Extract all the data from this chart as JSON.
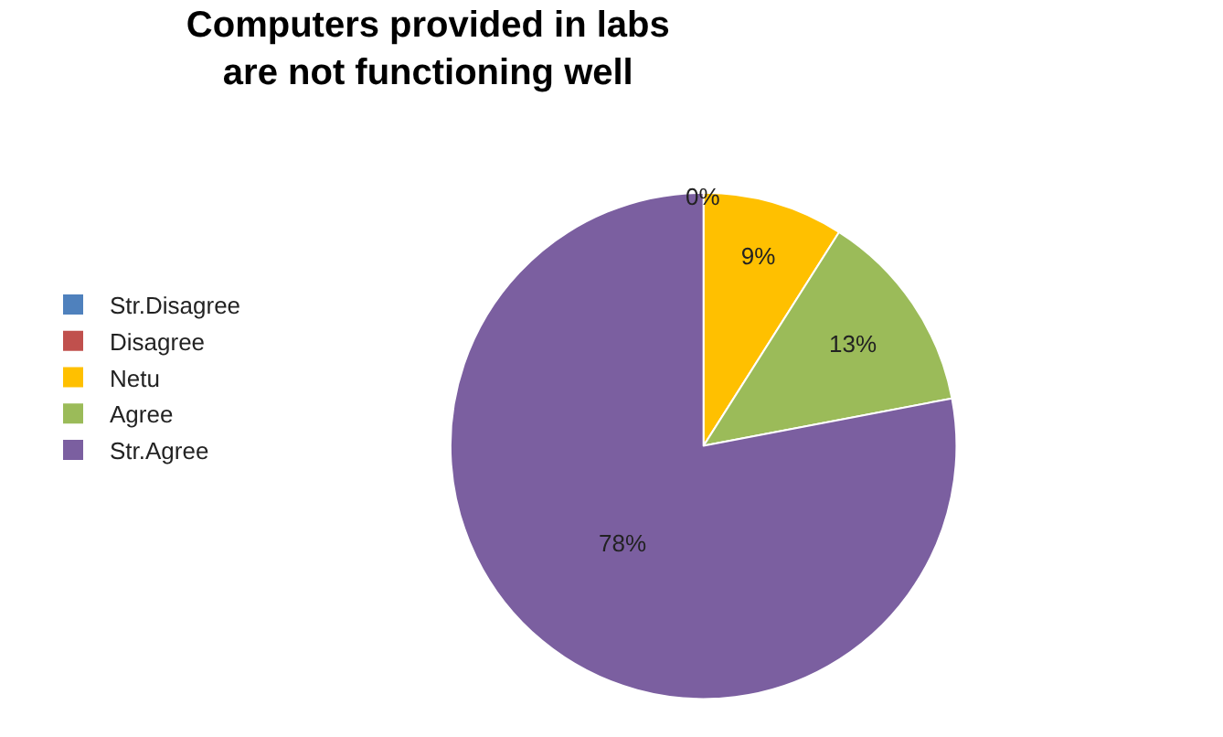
{
  "chart_data": {
    "type": "pie",
    "title": "Computers provided in labs\nare not functioning well",
    "categories": [
      "Str.Disagree",
      "Disagree",
      "Netu",
      "Agree",
      "Str.Agree"
    ],
    "values": [
      0,
      0,
      9,
      13,
      78
    ],
    "colors": [
      "#4f81bd",
      "#c0504d",
      "#ffc000",
      "#9bbb59",
      "#7b5fa0"
    ],
    "value_labels": [
      null,
      "0%",
      "9%",
      "13%",
      "78%"
    ],
    "legend": "left"
  }
}
